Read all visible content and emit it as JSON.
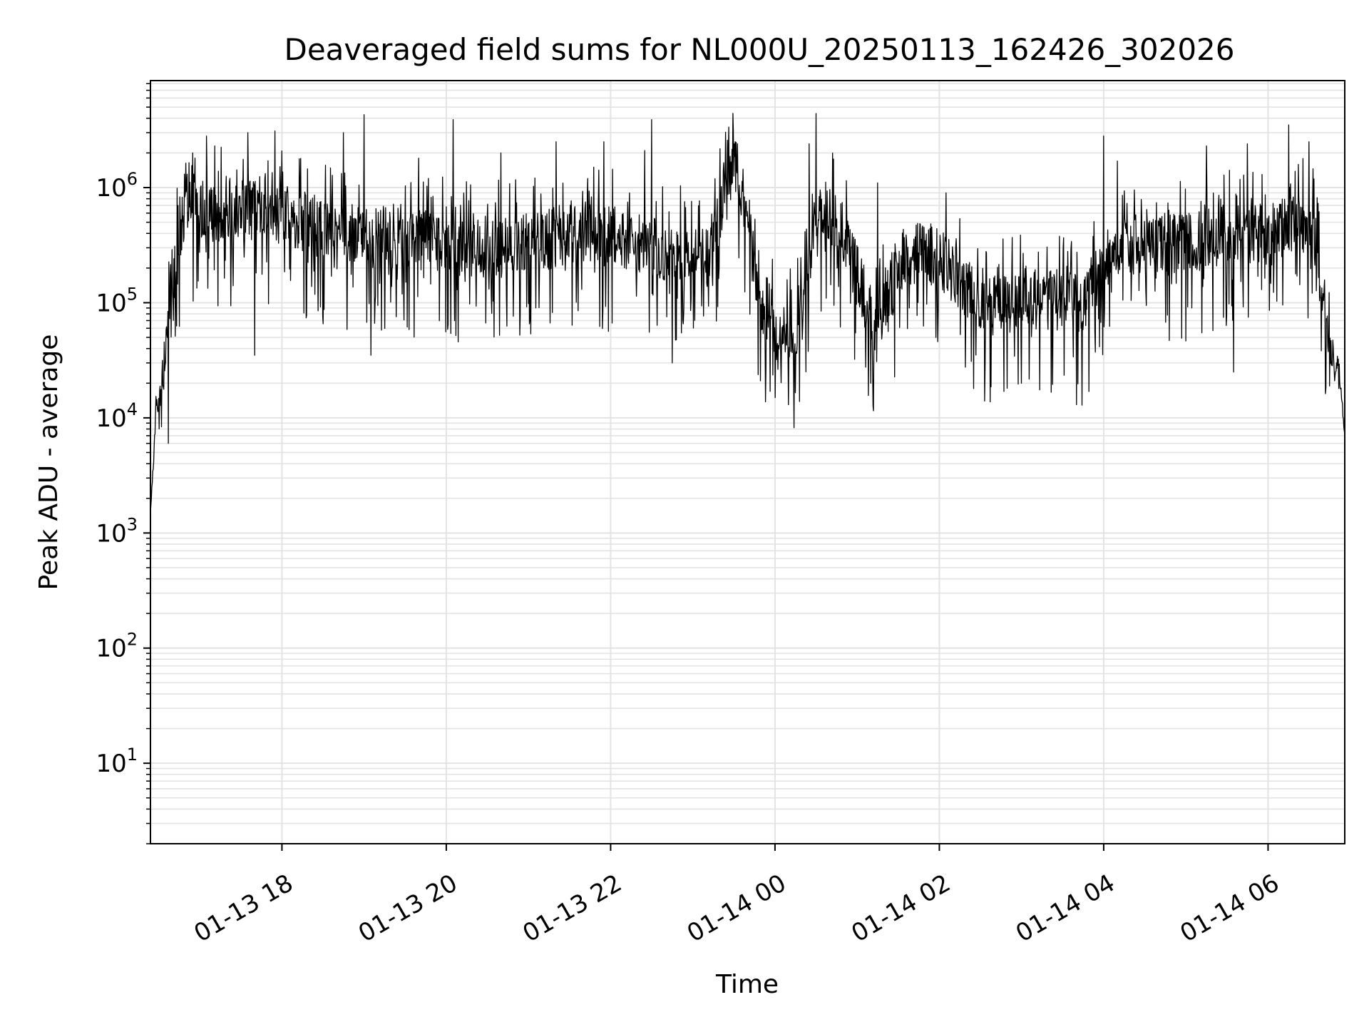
{
  "chart_data": {
    "type": "line",
    "title": "Deaveraged field sums for NL000U_20250113_162426_302026",
    "xlabel": "Time",
    "ylabel": "Peak ADU - average",
    "yscale": "log",
    "ylim": [
      2,
      8500000
    ],
    "xlim": [
      "2025-01-13 16:24",
      "2025-01-14 06:56"
    ],
    "grid": true,
    "line_color": "#000000",
    "grid_color": "#e3e3e3",
    "x_ticks": [
      {
        "value": "2025-01-13 18:00",
        "label": "01-13 18"
      },
      {
        "value": "2025-01-13 20:00",
        "label": "01-13 20"
      },
      {
        "value": "2025-01-13 22:00",
        "label": "01-13 22"
      },
      {
        "value": "2025-01-14 00:00",
        "label": "01-14 00"
      },
      {
        "value": "2025-01-14 02:00",
        "label": "01-14 02"
      },
      {
        "value": "2025-01-14 04:00",
        "label": "01-14 04"
      },
      {
        "value": "2025-01-14 06:00",
        "label": "01-14 06"
      }
    ],
    "y_ticks": [
      {
        "value": 10,
        "base": "10",
        "exp": "1"
      },
      {
        "value": 100,
        "base": "10",
        "exp": "2"
      },
      {
        "value": 1000,
        "base": "10",
        "exp": "3"
      },
      {
        "value": 10000,
        "base": "10",
        "exp": "4"
      },
      {
        "value": 100000,
        "base": "10",
        "exp": "5"
      },
      {
        "value": 1000000,
        "base": "10",
        "exp": "6"
      }
    ],
    "series": [
      {
        "points": [
          [
            "2025-01-13 16:24",
            1500
          ],
          [
            "2025-01-13 16:26",
            4000
          ],
          [
            "2025-01-13 16:28",
            12000
          ],
          [
            "2025-01-13 16:31",
            15000
          ],
          [
            "2025-01-13 16:34",
            22000
          ],
          [
            "2025-01-13 16:37",
            80000
          ],
          [
            "2025-01-13 16:40",
            200000
          ],
          [
            "2025-01-13 16:44",
            400000
          ],
          [
            "2025-01-13 16:48",
            550000
          ],
          [
            "2025-01-13 16:55",
            700000
          ],
          [
            "2025-01-13 17:05",
            600000
          ],
          [
            "2025-01-13 17:20",
            650000
          ],
          [
            "2025-01-13 17:40",
            620000
          ],
          [
            "2025-01-13 18:00",
            600000
          ],
          [
            "2025-01-13 18:20",
            480000
          ],
          [
            "2025-01-13 18:40",
            420000
          ],
          [
            "2025-01-13 19:00",
            380000
          ],
          [
            "2025-01-13 19:30",
            360000
          ],
          [
            "2025-01-13 20:00",
            330000
          ],
          [
            "2025-01-13 20:30",
            300000
          ],
          [
            "2025-01-13 21:00",
            320000
          ],
          [
            "2025-01-13 21:15",
            350000
          ],
          [
            "2025-01-13 21:30",
            420000
          ],
          [
            "2025-01-13 22:00",
            380000
          ],
          [
            "2025-01-13 22:30",
            300000
          ],
          [
            "2025-01-13 23:00",
            260000
          ],
          [
            "2025-01-13 23:12",
            250000
          ],
          [
            "2025-01-13 23:20",
            600000
          ],
          [
            "2025-01-13 23:25",
            1500000
          ],
          [
            "2025-01-13 23:30",
            2000000
          ],
          [
            "2025-01-13 23:36",
            900000
          ],
          [
            "2025-01-13 23:42",
            400000
          ],
          [
            "2025-01-13 23:48",
            90000
          ],
          [
            "2025-01-13 23:56",
            70000
          ],
          [
            "2025-01-14 00:05",
            50000
          ],
          [
            "2025-01-14 00:15",
            60000
          ],
          [
            "2025-01-14 00:25",
            200000
          ],
          [
            "2025-01-14 00:35",
            700000
          ],
          [
            "2025-01-14 00:45",
            500000
          ],
          [
            "2025-01-14 00:55",
            250000
          ],
          [
            "2025-01-14 01:05",
            120000
          ],
          [
            "2025-01-14 01:12",
            60000
          ],
          [
            "2025-01-14 01:20",
            100000
          ],
          [
            "2025-01-14 01:35",
            250000
          ],
          [
            "2025-01-14 01:50",
            280000
          ],
          [
            "2025-01-14 02:05",
            220000
          ],
          [
            "2025-01-14 02:20",
            130000
          ],
          [
            "2025-01-14 02:35",
            90000
          ],
          [
            "2025-01-14 02:50",
            100000
          ],
          [
            "2025-01-14 03:05",
            110000
          ],
          [
            "2025-01-14 03:20",
            100000
          ],
          [
            "2025-01-14 03:35",
            120000
          ],
          [
            "2025-01-14 03:45",
            80000
          ],
          [
            "2025-01-14 03:52",
            150000
          ],
          [
            "2025-01-14 04:05",
            280000
          ],
          [
            "2025-01-14 04:20",
            320000
          ],
          [
            "2025-01-14 04:40",
            300000
          ],
          [
            "2025-01-14 05:00",
            330000
          ],
          [
            "2025-01-14 05:20",
            380000
          ],
          [
            "2025-01-14 05:40",
            420000
          ],
          [
            "2025-01-14 06:00",
            380000
          ],
          [
            "2025-01-14 06:20",
            500000
          ],
          [
            "2025-01-14 06:32",
            450000
          ],
          [
            "2025-01-14 06:40",
            130000
          ],
          [
            "2025-01-14 06:46",
            40000
          ],
          [
            "2025-01-14 06:52",
            25000
          ],
          [
            "2025-01-14 06:56",
            7000
          ]
        ],
        "noise_amplitude_decades": 0.9,
        "spikes": [
          [
            "2025-01-13 16:55",
            2000000
          ],
          [
            "2025-01-13 17:05",
            2800000
          ],
          [
            "2025-01-13 17:35",
            3000000
          ],
          [
            "2025-01-13 17:55",
            3100000
          ],
          [
            "2025-01-13 18:45",
            3000000
          ],
          [
            "2025-01-13 19:00",
            4300000
          ],
          [
            "2025-01-13 19:40",
            1800000
          ],
          [
            "2025-01-13 20:05",
            3900000
          ],
          [
            "2025-01-13 20:40",
            2000000
          ],
          [
            "2025-01-13 21:20",
            2500000
          ],
          [
            "2025-01-13 21:55",
            2500000
          ],
          [
            "2025-01-13 22:25",
            2100000
          ],
          [
            "2025-01-13 22:30",
            3900000
          ],
          [
            "2025-01-14 00:25",
            2400000
          ],
          [
            "2025-01-14 00:30",
            4400000
          ],
          [
            "2025-01-14 01:15",
            1100000
          ],
          [
            "2025-01-14 02:05",
            900000
          ],
          [
            "2025-01-14 04:00",
            2800000
          ],
          [
            "2025-01-14 04:10",
            1700000
          ],
          [
            "2025-01-14 05:15",
            2300000
          ],
          [
            "2025-01-14 05:45",
            2400000
          ],
          [
            "2025-01-14 06:15",
            3500000
          ],
          [
            "2025-01-14 06:30",
            2500000
          ]
        ],
        "dips": [
          [
            "2025-01-13 16:37",
            6000
          ],
          [
            "2025-01-13 17:40",
            35000
          ],
          [
            "2025-01-13 19:05",
            35000
          ],
          [
            "2025-01-13 22:45",
            30000
          ],
          [
            "2025-01-14 00:00",
            15000
          ],
          [
            "2025-01-14 00:10",
            13000
          ],
          [
            "2025-01-14 01:10",
            20000
          ],
          [
            "2025-01-14 02:25",
            18000
          ],
          [
            "2025-01-14 03:00",
            20000
          ],
          [
            "2025-01-14 03:40",
            13000
          ],
          [
            "2025-01-14 05:35",
            25000
          ]
        ]
      }
    ]
  }
}
